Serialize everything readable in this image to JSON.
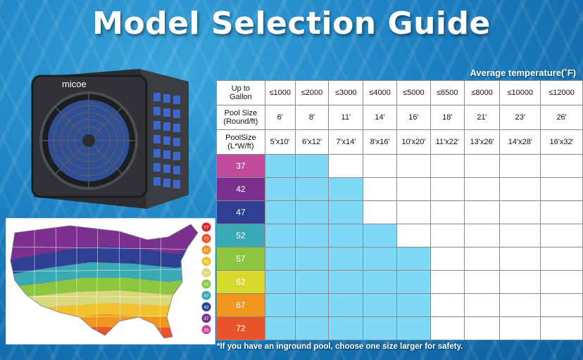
{
  "title": "Model Selection Guide",
  "avg_temperature_label": "Average temperature(˚F)",
  "brand": "micoe",
  "table": {
    "row_labels": {
      "gallon": "Up to\nGallon",
      "round": "Pool Size\n(Round/ft)",
      "lw": "PoolSize\n(L*W/ft)"
    },
    "columns": [
      {
        "gallon": "≤1000",
        "round": "6'",
        "lw": "5'x10'"
      },
      {
        "gallon": "≤2000",
        "round": "8'",
        "lw": "6'x12'"
      },
      {
        "gallon": "≤3000",
        "round": "11'",
        "lw": "7'x14'"
      },
      {
        "gallon": "≤4000",
        "round": "14'",
        "lw": "8'x16'"
      },
      {
        "gallon": "≤5000",
        "round": "16'",
        "lw": "10'x20'"
      },
      {
        "gallon": "≤6500",
        "round": "18'",
        "lw": "11'x22'"
      },
      {
        "gallon": "≤8000",
        "round": "21'",
        "lw": "13'x26'"
      },
      {
        "gallon": "≤10000",
        "round": "23'",
        "lw": "14'x28'"
      },
      {
        "gallon": "≤12000",
        "round": "26'",
        "lw": "16'x32'"
      }
    ],
    "temperature_rows": [
      {
        "temp": "37",
        "color": "#c24a9a",
        "filled": 2
      },
      {
        "temp": "42",
        "color": "#7b2f8e",
        "filled": 3
      },
      {
        "temp": "47",
        "color": "#2f3f92",
        "filled": 3
      },
      {
        "temp": "52",
        "color": "#3aa9b6",
        "filled": 4
      },
      {
        "temp": "57",
        "color": "#8cc63f",
        "filled": 5
      },
      {
        "temp": "62",
        "color": "#d7d92b",
        "filled": 5
      },
      {
        "temp": "67",
        "color": "#f0961c",
        "filled": 5
      },
      {
        "temp": "72",
        "color": "#e9542a",
        "filled": 5
      }
    ],
    "fill_color": "#7fd8f5"
  },
  "map_legend": [
    {
      "value": "77",
      "color": "#d9262a"
    },
    {
      "value": "72",
      "color": "#e9542a"
    },
    {
      "value": "67",
      "color": "#f0961c"
    },
    {
      "value": "62",
      "color": "#f2c12e"
    },
    {
      "value": "57",
      "color": "#d7d97a"
    },
    {
      "value": "52",
      "color": "#8cc63f"
    },
    {
      "value": "47",
      "color": "#3aa9b6"
    },
    {
      "value": "42",
      "color": "#2f3f92"
    },
    {
      "value": "37",
      "color": "#7b2f8e"
    },
    {
      "value": "35",
      "color": "#c24a9a"
    }
  ],
  "footnote": "*If you have an inground pool, choose one size larger for safety."
}
